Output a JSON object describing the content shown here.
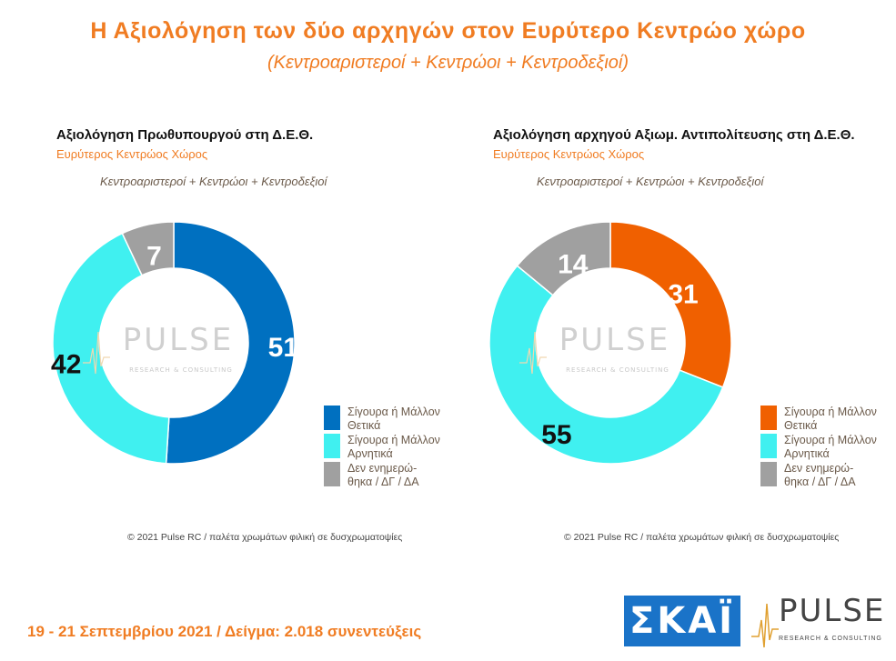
{
  "header": {
    "title": "Η Αξιολόγηση των δύο αρχηγών στον Ευρύτερο Κεντρώο χώρο",
    "subtitle": "(Κεντροαριστεροί + Κεντρώοι + Κεντροδεξιοί)"
  },
  "chart_data": [
    {
      "type": "pie",
      "title": "Αξιολόγηση Πρωθυπουργού στη Δ.Ε.Θ.",
      "subtitle": "Ευρύτερος Κεντρώος Χώρος",
      "group_label": "Κεντροαριστεροί + Κεντρώοι + Κεντροδεξιοί",
      "categories": [
        "Σίγουρα ή Μάλλον Θετικά",
        "Σίγουρα ή Μάλλον Αρνητικά",
        "Δεν ενημερώθηκα / ΔΓ / ΔΑ"
      ],
      "values": [
        51,
        42,
        7
      ],
      "colors": [
        "#0070c0",
        "#40f0f0",
        "#a0a0a0"
      ],
      "legend_placement": "bottom-right",
      "copyright": "© 2021 Pulse RC  /  παλέτα χρωμάτων φιλική σε δυσχρωματοψίες"
    },
    {
      "type": "pie",
      "title": "Αξιολόγηση αρχηγού Αξιωμ. Αντιπολίτευσης στη Δ.Ε.Θ.",
      "subtitle": "Ευρύτερος Κεντρώος Χώρος",
      "group_label": "Κεντροαριστεροί + Κεντρώοι + Κεντροδεξιοί",
      "categories": [
        "Σίγουρα ή Μάλλον Θετικά",
        "Σίγουρα ή Μάλλον Αρνητικά",
        "Δεν ενημερώθηκα / ΔΓ / ΔΑ"
      ],
      "values": [
        31,
        55,
        14
      ],
      "colors": [
        "#f06000",
        "#40f0f0",
        "#a0a0a0"
      ],
      "legend_placement": "bottom-right",
      "copyright": "© 2021 Pulse RC  /  παλέτα χρωμάτων φιλική σε δυσχρωματοψίες"
    }
  ],
  "legend_labels": [
    [
      "Σίγουρα ή Μάλλον",
      "Θετικά"
    ],
    [
      "Σίγουρα ή Μάλλον",
      "Αρνητικά"
    ],
    [
      "Δεν ενημερώ-",
      "θηκα / ΔΓ / ΔΑ"
    ]
  ],
  "watermark": {
    "word": "PULSE",
    "tagline": "RESEARCH & CONSULTING"
  },
  "footer": {
    "text": "19 - 21 Σεπτεμβρίου 2021  /  Δείγμα:  2.018 συνεντεύξεις"
  },
  "logos": {
    "skai": "ΣΚΑΪ",
    "pulse": "PULSE",
    "pulse_tagline": "RESEARCH & CONSULTING"
  }
}
